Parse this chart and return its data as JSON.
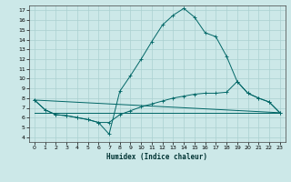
{
  "xlabel": "Humidex (Indice chaleur)",
  "bg_color": "#cce8e8",
  "grid_color": "#aad0d0",
  "line_color": "#006666",
  "xlim": [
    -0.5,
    23.5
  ],
  "ylim": [
    3.5,
    17.5
  ],
  "xticks": [
    0,
    1,
    2,
    3,
    4,
    5,
    6,
    7,
    8,
    9,
    10,
    11,
    12,
    13,
    14,
    15,
    16,
    17,
    18,
    19,
    20,
    21,
    22,
    23
  ],
  "yticks": [
    4,
    5,
    6,
    7,
    8,
    9,
    10,
    11,
    12,
    13,
    14,
    15,
    16,
    17
  ],
  "series": [
    {
      "x": [
        0,
        1,
        2,
        3,
        4,
        5,
        6,
        7,
        8,
        9,
        10,
        11,
        12,
        13,
        14,
        15,
        16,
        17,
        18,
        19,
        20,
        21,
        22,
        23
      ],
      "y": [
        7.8,
        6.8,
        6.3,
        6.2,
        6.0,
        5.8,
        5.5,
        4.3,
        8.7,
        10.3,
        12.0,
        13.8,
        15.5,
        16.5,
        17.2,
        16.3,
        14.7,
        14.3,
        12.3,
        9.7,
        8.5,
        8.0,
        7.6,
        6.5
      ],
      "marker": true
    },
    {
      "x": [
        0,
        1,
        2,
        3,
        4,
        5,
        6,
        7,
        8,
        9,
        10,
        11,
        12,
        13,
        14,
        15,
        16,
        17,
        18,
        19,
        20,
        21,
        22,
        23
      ],
      "y": [
        7.8,
        6.8,
        6.3,
        6.2,
        6.0,
        5.8,
        5.5,
        5.5,
        6.3,
        6.7,
        7.1,
        7.4,
        7.7,
        8.0,
        8.2,
        8.4,
        8.5,
        8.5,
        8.6,
        9.7,
        8.5,
        8.0,
        7.6,
        6.5
      ],
      "marker": true
    },
    {
      "x": [
        0,
        23
      ],
      "y": [
        6.5,
        6.5
      ],
      "marker": false
    },
    {
      "x": [
        0,
        23
      ],
      "y": [
        7.8,
        6.5
      ],
      "marker": false
    }
  ]
}
